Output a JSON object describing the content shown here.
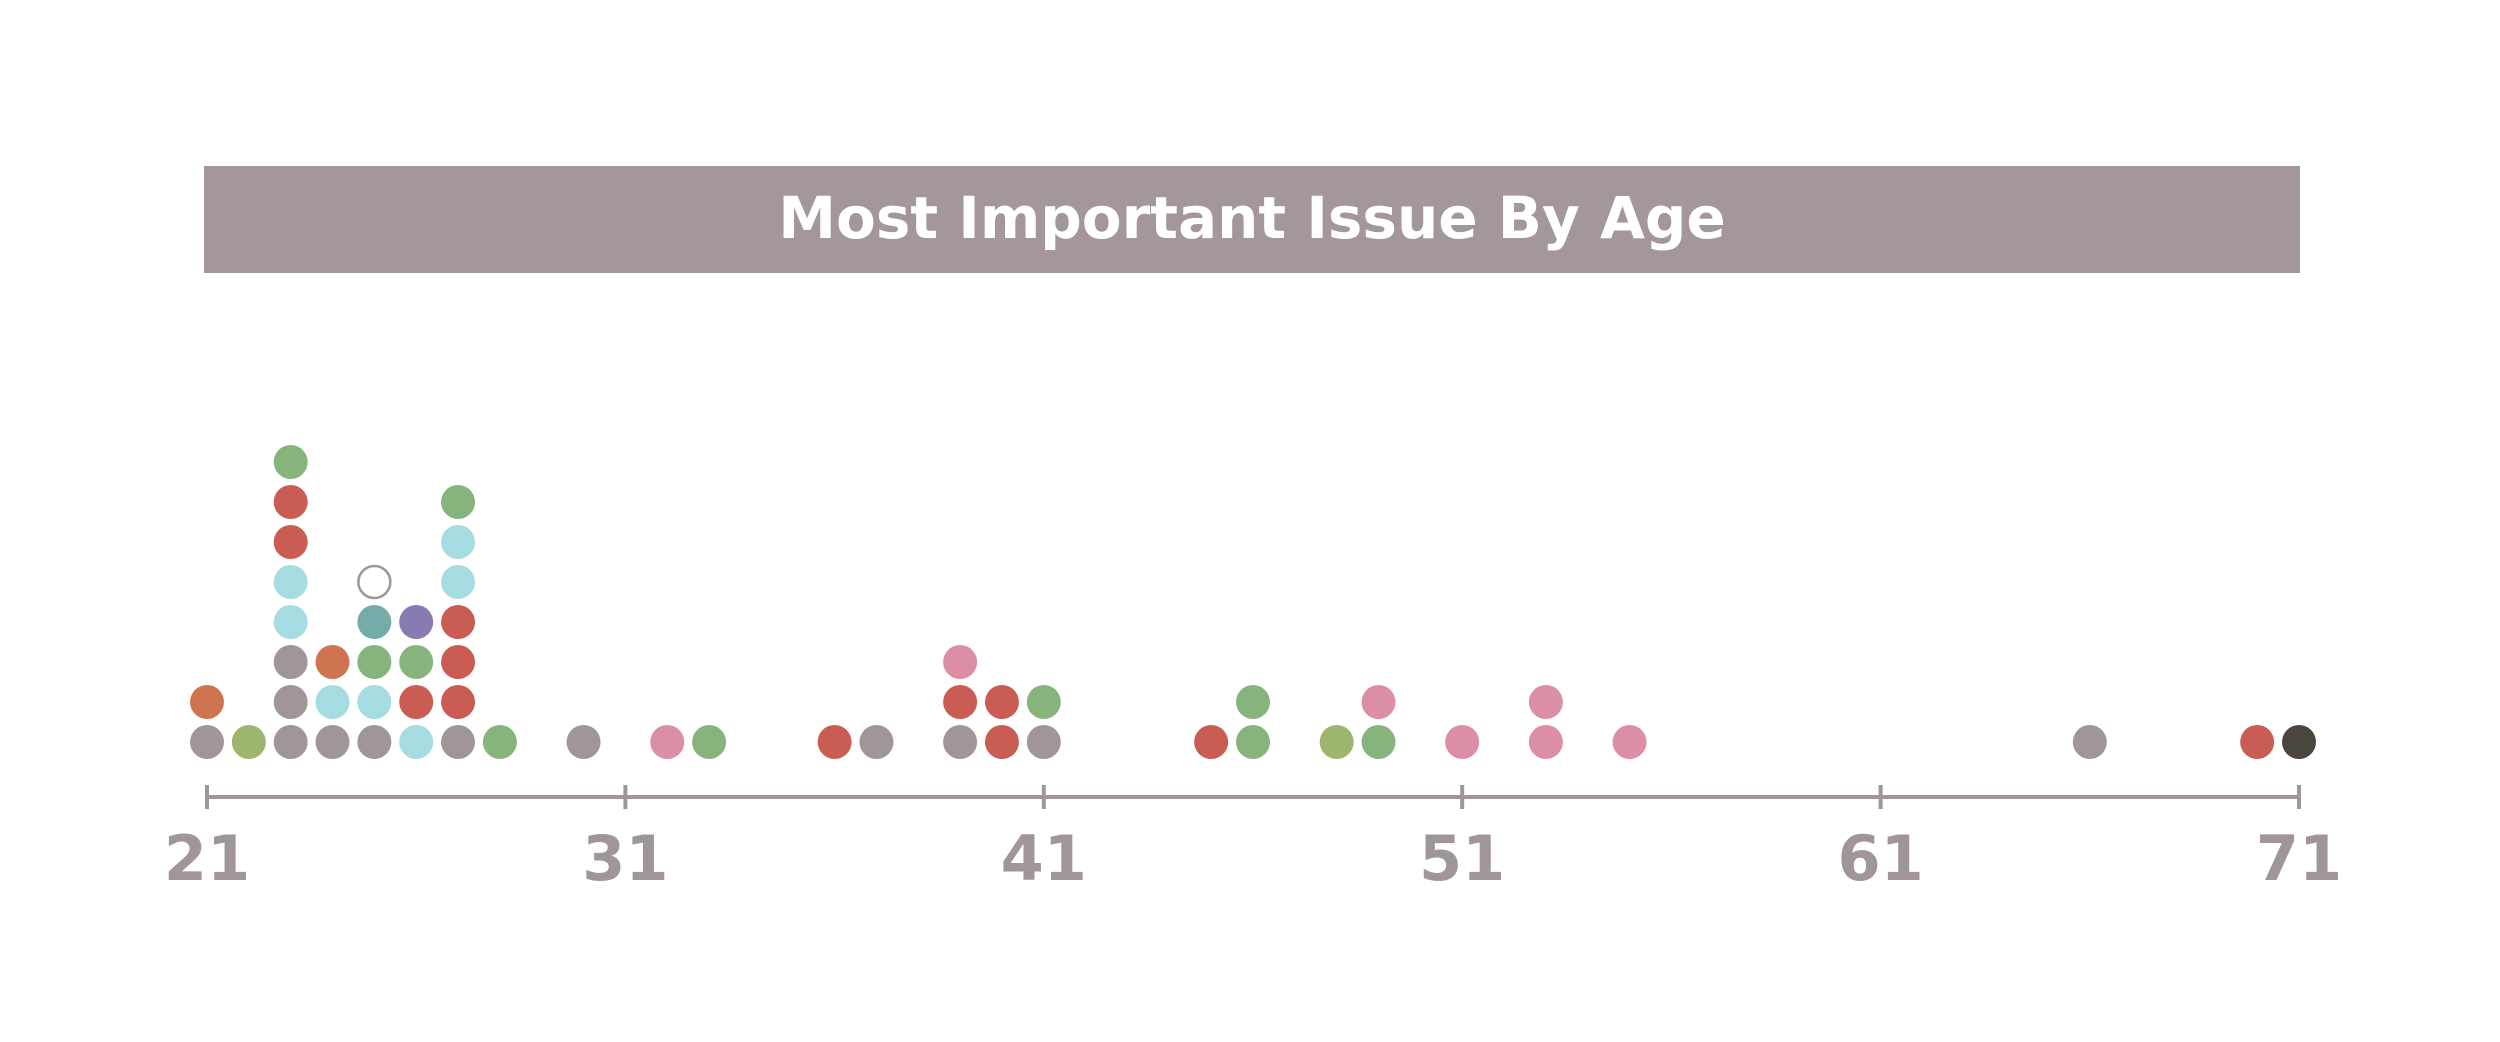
{
  "chart_data": {
    "type": "scatter",
    "title": "Most Important Issue By Age",
    "xlabel": "",
    "ylabel": "",
    "xlim": [
      21,
      71
    ],
    "xticks": [
      "21",
      "31",
      "41",
      "51",
      "61",
      "71"
    ],
    "grid": false,
    "legend": "none",
    "colors": {
      "gray": "#a09597",
      "orange": "#cf7450",
      "olive": "#9db56f",
      "cyan": "#a5dce2",
      "red": "#c95d53",
      "green": "#87b47d",
      "teal": "#74aca9",
      "purple": "#877bb1",
      "pink": "#dc8ea4",
      "dark": "#4b463d",
      "hollow": "#ffffff"
    },
    "columns": [
      {
        "age": 21,
        "dots": [
          "gray",
          "orange"
        ]
      },
      {
        "age": 22,
        "dots": [
          "olive"
        ]
      },
      {
        "age": 23,
        "dots": [
          "gray",
          "gray",
          "gray",
          "cyan",
          "cyan",
          "red",
          "red",
          "green"
        ]
      },
      {
        "age": 24,
        "dots": [
          "gray",
          "cyan",
          "orange"
        ]
      },
      {
        "age": 25,
        "dots": [
          "gray",
          "cyan",
          "green",
          "teal",
          "hollow"
        ]
      },
      {
        "age": 26,
        "dots": [
          "cyan",
          "red",
          "green",
          "purple"
        ]
      },
      {
        "age": 27,
        "dots": [
          "gray",
          "red",
          "red",
          "red",
          "cyan",
          "cyan",
          "green"
        ]
      },
      {
        "age": 28,
        "dots": [
          "green"
        ]
      },
      {
        "age": 30,
        "dots": [
          "gray"
        ]
      },
      {
        "age": 32,
        "dots": [
          "pink"
        ]
      },
      {
        "age": 33,
        "dots": [
          "green"
        ]
      },
      {
        "age": 36,
        "dots": [
          "red"
        ]
      },
      {
        "age": 37,
        "dots": [
          "gray"
        ]
      },
      {
        "age": 39,
        "dots": [
          "gray",
          "red",
          "pink"
        ]
      },
      {
        "age": 40,
        "dots": [
          "red",
          "red"
        ]
      },
      {
        "age": 41,
        "dots": [
          "gray",
          "green"
        ]
      },
      {
        "age": 45,
        "dots": [
          "red"
        ]
      },
      {
        "age": 46,
        "dots": [
          "green",
          "green"
        ]
      },
      {
        "age": 48,
        "dots": [
          "olive"
        ]
      },
      {
        "age": 49,
        "dots": [
          "green",
          "pink"
        ]
      },
      {
        "age": 51,
        "dots": [
          "pink"
        ]
      },
      {
        "age": 53,
        "dots": [
          "pink",
          "pink"
        ]
      },
      {
        "age": 55,
        "dots": [
          "pink"
        ]
      },
      {
        "age": 66,
        "dots": [
          "gray"
        ]
      },
      {
        "age": 70,
        "dots": [
          "red"
        ]
      },
      {
        "age": 71,
        "dots": [
          "dark"
        ]
      }
    ]
  }
}
